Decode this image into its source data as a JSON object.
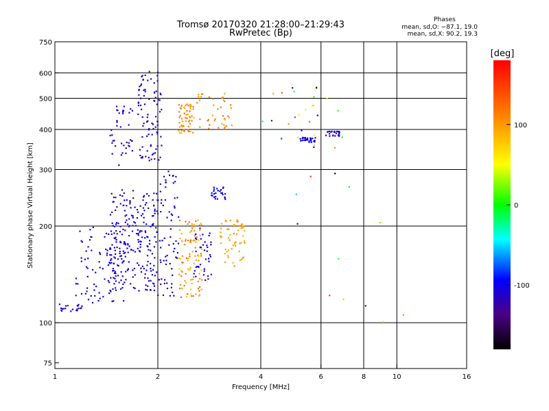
{
  "chart_data": {
    "type": "scatter",
    "title": "Tromsø 20170320 21:28:00–21:29:43",
    "subtitle": "RwPretec (Bp)",
    "xlabel": "Frequency [MHz]",
    "ylabel": "Stationary phase Virtual Height [km]",
    "xscale": "log2",
    "yscale": "log",
    "xlim": [
      1,
      16
    ],
    "ylim": [
      72,
      750
    ],
    "xticks": [
      1,
      2,
      4,
      6,
      8,
      10,
      16
    ],
    "yticks": [
      75,
      100,
      200,
      300,
      400,
      500,
      600,
      750
    ],
    "grid_x": [
      2,
      4,
      6,
      8,
      10
    ],
    "grid_y": [
      100,
      200,
      300,
      400,
      500,
      600
    ],
    "grid": true,
    "legend": {
      "title": "Phases",
      "line1": "mean, sd,O: −87.1, 19.0",
      "line2": "mean, sd,X:  90.2, 19.3"
    },
    "colorbar": {
      "label": "[deg]",
      "range": [
        -180,
        180
      ],
      "ticks": [
        100,
        0,
        -100
      ]
    },
    "clusters": [
      {
        "f": [
          1.0,
          1.2
        ],
        "h": [
          108,
          115
        ],
        "phase": [
          -120,
          -95
        ],
        "n": 22
      },
      {
        "f": [
          1.15,
          1.6
        ],
        "h": [
          115,
          200
        ],
        "phase": [
          -125,
          -90
        ],
        "n": 90
      },
      {
        "f": [
          1.45,
          2.0
        ],
        "h": [
          125,
          260
        ],
        "phase": [
          -125,
          -90
        ],
        "n": 230
      },
      {
        "f": [
          1.45,
          1.7
        ],
        "h": [
          300,
          480
        ],
        "phase": [
          -120,
          -100
        ],
        "n": 40
      },
      {
        "f": [
          1.75,
          2.05
        ],
        "h": [
          320,
          610
        ],
        "phase": [
          -125,
          -100
        ],
        "n": 90
      },
      {
        "f": [
          2.0,
          2.3
        ],
        "h": [
          120,
          300
        ],
        "phase": [
          -120,
          -95
        ],
        "n": 70
      },
      {
        "f": [
          2.3,
          2.7
        ],
        "h": [
          120,
          210
        ],
        "phase": [
          70,
          140
        ],
        "n": 100
      },
      {
        "f": [
          2.55,
          2.9
        ],
        "h": [
          135,
          200
        ],
        "phase": [
          -115,
          -95
        ],
        "n": 40
      },
      {
        "f": [
          2.3,
          2.55
        ],
        "h": [
          390,
          480
        ],
        "phase": [
          80,
          125
        ],
        "n": 60
      },
      {
        "f": [
          2.6,
          3.3
        ],
        "h": [
          400,
          520
        ],
        "phase": [
          90,
          125
        ],
        "n": 40
      },
      {
        "f": [
          2.85,
          3.15
        ],
        "h": [
          240,
          265
        ],
        "phase": [
          -105,
          -90
        ],
        "n": 25
      },
      {
        "f": [
          3.0,
          3.6
        ],
        "h": [
          150,
          210
        ],
        "phase": [
          85,
          110
        ],
        "n": 60
      },
      {
        "f": [
          5.2,
          5.8
        ],
        "h": [
          365,
          378
        ],
        "phase": [
          -110,
          -95
        ],
        "n": 30
      },
      {
        "f": [
          6.2,
          6.8
        ],
        "h": [
          380,
          395
        ],
        "phase": [
          -120,
          -95
        ],
        "n": 25
      },
      {
        "f": [
          4.0,
          7.0
        ],
        "h": [
          350,
          550
        ],
        "phase": [
          -120,
          140
        ],
        "n": 25
      },
      {
        "f": [
          4.3,
          12.0
        ],
        "h": [
          100,
          620
        ],
        "phase": [
          -160,
          160
        ],
        "n": 15
      }
    ]
  }
}
